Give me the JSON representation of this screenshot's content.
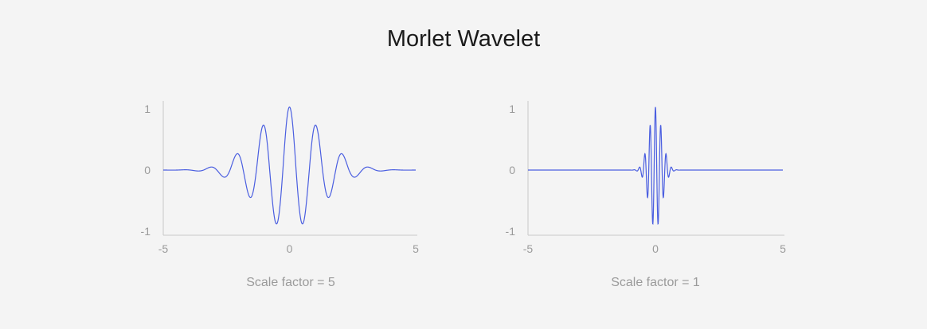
{
  "title": "Morlet Wavelet",
  "colors": {
    "background": "#f4f4f4",
    "line": "#4a5ee0",
    "axis": "#c8c8c8",
    "label": "#9a9a9a"
  },
  "chart_data": [
    {
      "type": "line",
      "title": "",
      "caption": "Scale factor = 5",
      "xlabel": "",
      "ylabel": "",
      "xlim": [
        -5,
        5
      ],
      "ylim": [
        -1,
        1
      ],
      "x_ticks": [
        -5,
        0,
        5
      ],
      "y_ticks": [
        1,
        0,
        -1
      ],
      "grid": false,
      "legend": false,
      "series": [
        {
          "function": "morlet",
          "scale": 5,
          "x_range": [
            -5,
            5
          ],
          "y_peak": 1.03,
          "y_min": -0.88
        }
      ]
    },
    {
      "type": "line",
      "title": "",
      "caption": "Scale factor = 1",
      "xlabel": "",
      "ylabel": "",
      "xlim": [
        -5,
        5
      ],
      "ylim": [
        -1,
        1
      ],
      "x_ticks": [
        -5,
        0,
        5
      ],
      "y_ticks": [
        1,
        0,
        -1
      ],
      "grid": false,
      "legend": false,
      "series": [
        {
          "function": "morlet",
          "scale": 1,
          "x_range": [
            -5,
            5
          ],
          "y_peak": 1.03,
          "y_min": -0.88
        }
      ]
    }
  ]
}
